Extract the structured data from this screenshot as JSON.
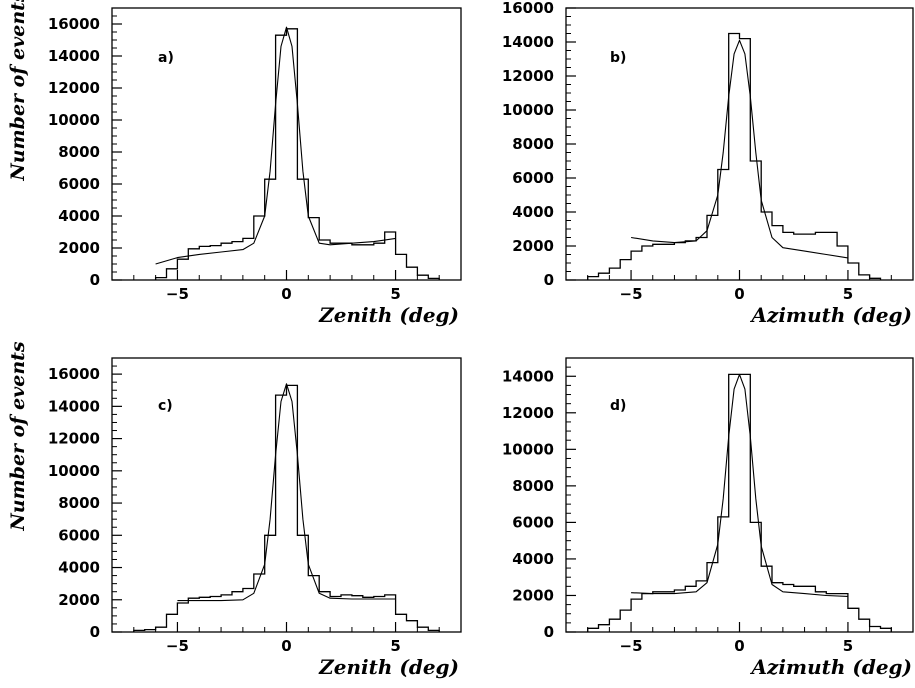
{
  "chart_data": [
    {
      "type": "line",
      "panel_label": "a)",
      "xlabel": "Zenith (deg)",
      "ylabel": "Number of events",
      "xlim": [
        -8,
        8
      ],
      "ylim": [
        0,
        17000
      ],
      "x_ticks": [
        -5,
        0,
        5
      ],
      "y_ticks": [
        0,
        2000,
        4000,
        6000,
        8000,
        10000,
        12000,
        14000,
        16000
      ],
      "grid": false,
      "series": [
        {
          "kind": "histogram",
          "bin_edges": [
            -6,
            -5.5,
            -5,
            -4.5,
            -4,
            -3.5,
            -3,
            -2.5,
            -2,
            -1.5,
            -1,
            -0.5,
            0,
            0.5,
            1,
            1.5,
            2,
            2.5,
            3,
            3.5,
            4,
            4.5,
            5,
            5.5,
            6,
            6.5,
            7
          ],
          "values": [
            150,
            700,
            1300,
            1950,
            2100,
            2150,
            2300,
            2400,
            2600,
            4000,
            6300,
            15300,
            15700,
            6300,
            3900,
            2500,
            2300,
            2300,
            2200,
            2200,
            2300,
            3000,
            1600,
            800,
            300,
            100
          ]
        },
        {
          "kind": "fit",
          "x": [
            -6,
            -5,
            -4,
            -3,
            -2,
            -1.5,
            -1,
            -0.75,
            -0.5,
            -0.25,
            0,
            0.25,
            0.5,
            0.75,
            1,
            1.5,
            2,
            3,
            4,
            5
          ],
          "y": [
            1000,
            1400,
            1600,
            1750,
            1900,
            2300,
            4000,
            6800,
            11000,
            14600,
            15800,
            14600,
            11000,
            6800,
            4000,
            2300,
            2200,
            2300,
            2400,
            2600
          ]
        }
      ]
    },
    {
      "type": "line",
      "panel_label": "b)",
      "xlabel": "Azimuth (deg)",
      "ylabel": "",
      "xlim": [
        -8,
        8
      ],
      "ylim": [
        0,
        16000
      ],
      "x_ticks": [
        -5,
        0,
        5
      ],
      "y_ticks": [
        0,
        2000,
        4000,
        6000,
        8000,
        10000,
        12000,
        14000,
        16000
      ],
      "grid": false,
      "series": [
        {
          "kind": "histogram",
          "bin_edges": [
            -7,
            -6.5,
            -6,
            -5.5,
            -5,
            -4.5,
            -4,
            -3.5,
            -3,
            -2.5,
            -2,
            -1.5,
            -1,
            -0.5,
            0,
            0.5,
            1,
            1.5,
            2,
            2.5,
            3,
            3.5,
            4,
            4.5,
            5,
            5.5,
            6,
            6.5
          ],
          "values": [
            200,
            400,
            700,
            1200,
            1700,
            2000,
            2100,
            2100,
            2200,
            2300,
            2500,
            3800,
            6500,
            14500,
            14200,
            7000,
            4000,
            3200,
            2800,
            2700,
            2700,
            2800,
            2800,
            2000,
            1000,
            300,
            100
          ]
        },
        {
          "kind": "fit",
          "x": [
            -5,
            -4,
            -3,
            -2,
            -1.5,
            -1,
            -0.75,
            -0.5,
            -0.25,
            0,
            0.25,
            0.5,
            0.75,
            1,
            1.5,
            2,
            3,
            4,
            5
          ],
          "y": [
            2500,
            2300,
            2200,
            2300,
            2900,
            5000,
            7500,
            10800,
            13300,
            14100,
            13300,
            10800,
            7500,
            4700,
            2500,
            1900,
            1700,
            1500,
            1300
          ]
        }
      ]
    },
    {
      "type": "line",
      "panel_label": "c)",
      "xlabel": "Zenith (deg)",
      "ylabel": "Number of events",
      "xlim": [
        -8,
        8
      ],
      "ylim": [
        0,
        17000
      ],
      "x_ticks": [
        -5,
        0,
        5
      ],
      "y_ticks": [
        0,
        2000,
        4000,
        6000,
        8000,
        10000,
        12000,
        14000,
        16000
      ],
      "grid": false,
      "series": [
        {
          "kind": "histogram",
          "bin_edges": [
            -7,
            -6.5,
            -6,
            -5.5,
            -5,
            -4.5,
            -4,
            -3.5,
            -3,
            -2.5,
            -2,
            -1.5,
            -1,
            -0.5,
            0,
            0.5,
            1,
            1.5,
            2,
            2.5,
            3,
            3.5,
            4,
            4.5,
            5,
            5.5,
            6,
            6.5,
            7
          ],
          "values": [
            100,
            150,
            300,
            1100,
            1800,
            2100,
            2150,
            2200,
            2300,
            2500,
            2700,
            3600,
            6000,
            14700,
            15300,
            6000,
            3500,
            2500,
            2200,
            2300,
            2250,
            2150,
            2200,
            2300,
            1100,
            700,
            300,
            100
          ]
        },
        {
          "kind": "fit",
          "x": [
            -5,
            -4,
            -3,
            -2,
            -1.5,
            -1,
            -0.75,
            -0.5,
            -0.25,
            0,
            0.25,
            0.5,
            0.75,
            1,
            1.5,
            2,
            3,
            4,
            5
          ],
          "y": [
            1950,
            1950,
            1950,
            2000,
            2400,
            4200,
            7000,
            11000,
            14300,
            15400,
            14300,
            11000,
            7000,
            4200,
            2400,
            2100,
            2050,
            2050,
            2050
          ]
        }
      ]
    },
    {
      "type": "line",
      "panel_label": "d)",
      "xlabel": "Azimuth (deg)",
      "ylabel": "",
      "xlim": [
        -8,
        8
      ],
      "ylim": [
        0,
        15000
      ],
      "x_ticks": [
        -5,
        0,
        5
      ],
      "y_ticks": [
        0,
        2000,
        4000,
        6000,
        8000,
        10000,
        12000,
        14000
      ],
      "grid": false,
      "series": [
        {
          "kind": "histogram",
          "bin_edges": [
            -7,
            -6.5,
            -6,
            -5.5,
            -5,
            -4.5,
            -4,
            -3.5,
            -3,
            -2.5,
            -2,
            -1.5,
            -1,
            -0.5,
            0,
            0.5,
            1,
            1.5,
            2,
            2.5,
            3,
            3.5,
            4,
            4.5,
            5,
            5.5,
            6,
            6.5,
            7
          ],
          "values": [
            200,
            400,
            700,
            1200,
            1800,
            2100,
            2200,
            2200,
            2300,
            2500,
            2800,
            3800,
            6300,
            14100,
            14100,
            6000,
            3600,
            2700,
            2600,
            2500,
            2500,
            2200,
            2100,
            2100,
            1300,
            700,
            300,
            200
          ]
        },
        {
          "kind": "fit",
          "x": [
            -5,
            -4,
            -3,
            -2,
            -1.5,
            -1,
            -0.75,
            -0.5,
            -0.25,
            0,
            0.25,
            0.5,
            0.75,
            1,
            1.5,
            2,
            3,
            4,
            5
          ],
          "y": [
            2150,
            2100,
            2100,
            2200,
            2700,
            4800,
            7300,
            10700,
            13300,
            14100,
            13300,
            10700,
            7300,
            4700,
            2600,
            2200,
            2100,
            2000,
            1950
          ]
        }
      ]
    }
  ]
}
